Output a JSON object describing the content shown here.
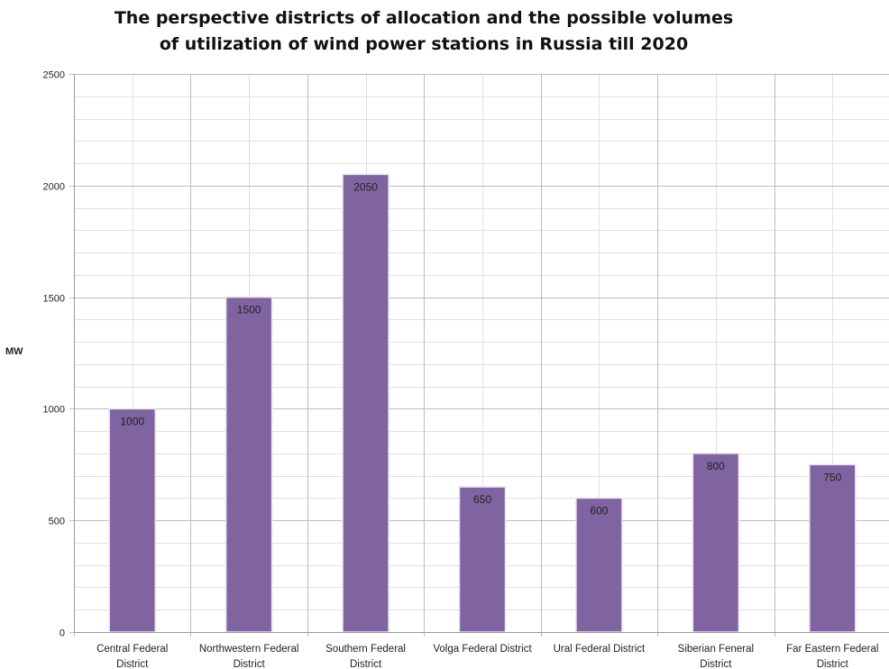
{
  "chart_data": {
    "type": "bar",
    "title": "The perspective districts of allocation and the possible volumes of utilization of wind power stations in Russia till 2020",
    "title_lines": [
      "The perspective districts of allocation and the possible volumes",
      "of utilization of wind power stations in Russia till 2020"
    ],
    "xlabel": "",
    "ylabel": "MW",
    "ylim": [
      0,
      2500
    ],
    "yticks": [
      0,
      500,
      1000,
      1500,
      2000,
      2500
    ],
    "grid": true,
    "legend": "none",
    "bar_color": "#8064a2",
    "categories": [
      [
        "Central Federal",
        "District"
      ],
      [
        "Northwestern Federal",
        "District"
      ],
      [
        "Southern Federal",
        "District"
      ],
      [
        "Volga Federal District"
      ],
      [
        "Ural Federal District"
      ],
      [
        "Siberian Feneral",
        "District"
      ],
      [
        "Far Eastern Federal",
        "District"
      ]
    ],
    "values": [
      1000,
      1500,
      2050,
      650,
      600,
      800,
      750
    ]
  }
}
